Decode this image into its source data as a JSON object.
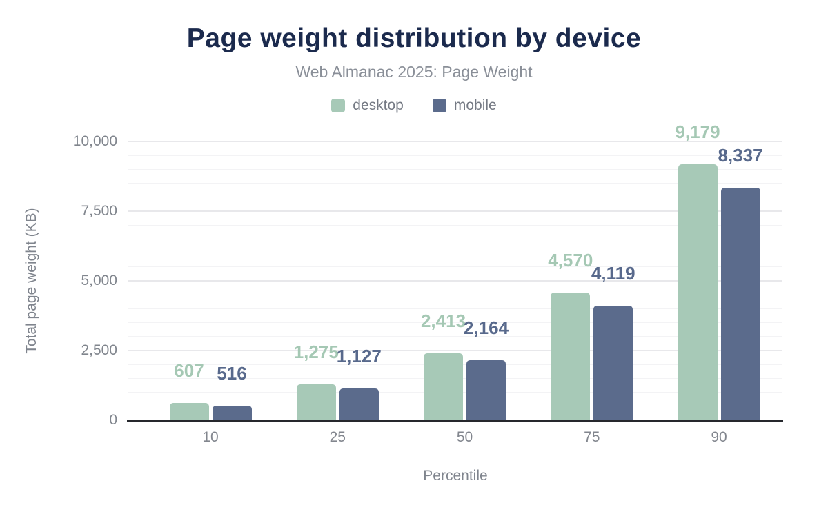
{
  "title": "Page weight distribution by device",
  "subtitle": "Web Almanac 2025: Page Weight",
  "legend": {
    "items": [
      {
        "label": "desktop",
        "color": "#a7c9b7"
      },
      {
        "label": "mobile",
        "color": "#5b6b8c"
      }
    ]
  },
  "colors": {
    "title": "#1b2a4d",
    "subtitle": "#8a8f98",
    "axis_line": "#26282d",
    "tick_text": "#80858d",
    "desktop_bar": "#a7c9b7",
    "mobile_bar": "#5b6b8c",
    "desktop_label": "#a5c8b4",
    "mobile_label": "#58698c",
    "grid_major": "#e8e8eb",
    "grid_minor": "#f3f3f5"
  },
  "chart_data": {
    "type": "bar",
    "title": "Page weight distribution by device",
    "subtitle": "Web Almanac 2025: Page Weight",
    "categories": [
      "10",
      "25",
      "50",
      "75",
      "90"
    ],
    "series": [
      {
        "name": "desktop",
        "color": "#a7c9b7",
        "label_color": "#a5c8b4",
        "values": [
          607,
          1275,
          2413,
          4570,
          9179
        ],
        "labels": [
          "607",
          "1,275",
          "2,413",
          "4,570",
          "9,179"
        ]
      },
      {
        "name": "mobile",
        "color": "#5b6b8c",
        "label_color": "#58698c",
        "values": [
          516,
          1127,
          2164,
          4119,
          8337
        ],
        "labels": [
          "516",
          "1,127",
          "2,164",
          "4,119",
          "8,337"
        ]
      }
    ],
    "xlabel": "Percentile",
    "ylabel": "Total page weight (KB)",
    "ylim": [
      0,
      10000
    ],
    "yticks": [
      0,
      2500,
      5000,
      7500,
      10000
    ],
    "ytick_labels": [
      "0",
      "2,500",
      "5,000",
      "7,500",
      "10,000"
    ],
    "minor_grid_step": 500,
    "grid": "on",
    "legend_position": "top"
  }
}
